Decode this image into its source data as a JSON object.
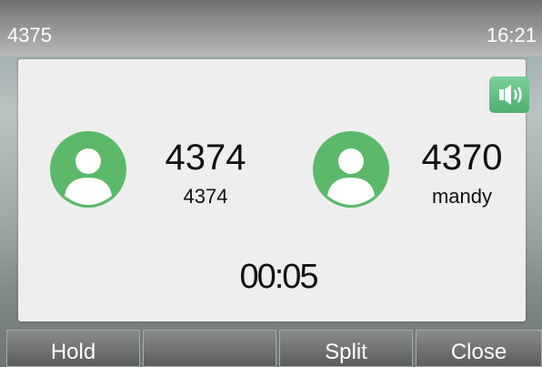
{
  "status_bar": {
    "account": "4375",
    "time": "16:21"
  },
  "calls": [
    {
      "number": "4374",
      "name": "4374"
    },
    {
      "number": "4370",
      "name": "mandy"
    }
  ],
  "timer": "00:05",
  "softkeys": [
    "Hold",
    "Split",
    "Close"
  ]
}
